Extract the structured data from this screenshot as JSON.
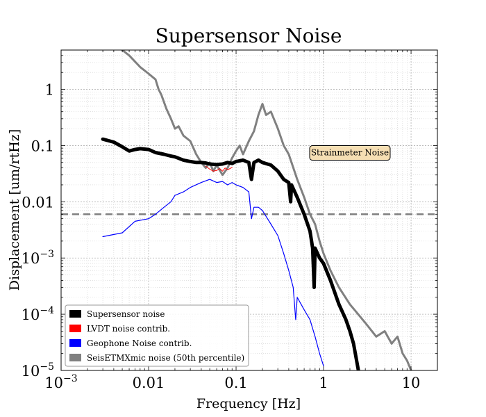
{
  "chart_data": {
    "type": "line",
    "title": "Supersensor Noise",
    "xlabel": "Frequency [Hz]",
    "ylabel": "Displacement [um/rtHz]",
    "xscale": "log",
    "yscale": "log",
    "xlim": [
      0.001,
      20
    ],
    "ylim": [
      1e-05,
      5
    ],
    "grid": true,
    "legend_position": "lower-left",
    "x_ticks": [
      {
        "value": 0.001,
        "base": "10",
        "exp": "−3",
        "label": ""
      },
      {
        "value": 0.01,
        "base": "",
        "exp": "",
        "label": "0.01"
      },
      {
        "value": 0.1,
        "base": "",
        "exp": "",
        "label": "0.1"
      },
      {
        "value": 1,
        "base": "",
        "exp": "",
        "label": "1"
      },
      {
        "value": 10,
        "base": "",
        "exp": "",
        "label": "10"
      }
    ],
    "y_ticks": [
      {
        "value": 1,
        "base": "",
        "exp": "",
        "label": "1"
      },
      {
        "value": 0.1,
        "base": "",
        "exp": "",
        "label": "0.1"
      },
      {
        "value": 0.01,
        "base": "",
        "exp": "",
        "label": "0.01"
      },
      {
        "value": 0.001,
        "base": "10",
        "exp": "−3",
        "label": ""
      },
      {
        "value": 0.0001,
        "base": "10",
        "exp": "−4",
        "label": ""
      },
      {
        "value": 1e-05,
        "base": "10",
        "exp": "−5",
        "label": ""
      }
    ],
    "reference_line": {
      "y": 0.006,
      "color": "#808080",
      "style": "dashed"
    },
    "annotation": {
      "text": "Strainmeter Noise",
      "x": 2.0,
      "y": 0.075,
      "fill": "#f5deb3"
    },
    "series": [
      {
        "name": "Supersensor noise",
        "color": "#000000",
        "width": 5,
        "points": [
          [
            0.003,
            0.13
          ],
          [
            0.004,
            0.115
          ],
          [
            0.005,
            0.095
          ],
          [
            0.006,
            0.08
          ],
          [
            0.007,
            0.085
          ],
          [
            0.008,
            0.088
          ],
          [
            0.01,
            0.085
          ],
          [
            0.012,
            0.075
          ],
          [
            0.015,
            0.07
          ],
          [
            0.018,
            0.065
          ],
          [
            0.02,
            0.063
          ],
          [
            0.025,
            0.055
          ],
          [
            0.03,
            0.052
          ],
          [
            0.035,
            0.05
          ],
          [
            0.04,
            0.05
          ],
          [
            0.045,
            0.049
          ],
          [
            0.05,
            0.047
          ],
          [
            0.06,
            0.046
          ],
          [
            0.07,
            0.047
          ],
          [
            0.08,
            0.05
          ],
          [
            0.09,
            0.048
          ],
          [
            0.1,
            0.052
          ],
          [
            0.12,
            0.055
          ],
          [
            0.14,
            0.05
          ],
          [
            0.15,
            0.025
          ],
          [
            0.16,
            0.05
          ],
          [
            0.18,
            0.055
          ],
          [
            0.2,
            0.05
          ],
          [
            0.25,
            0.045
          ],
          [
            0.3,
            0.035
          ],
          [
            0.35,
            0.025
          ],
          [
            0.4,
            0.022
          ],
          [
            0.42,
            0.01
          ],
          [
            0.43,
            0.02
          ],
          [
            0.5,
            0.012
          ],
          [
            0.6,
            0.006
          ],
          [
            0.7,
            0.003
          ],
          [
            0.75,
            0.0015
          ],
          [
            0.78,
            0.0003
          ],
          [
            0.8,
            0.0015
          ],
          [
            0.9,
            0.001
          ],
          [
            1.0,
            0.0008
          ],
          [
            1.2,
            0.0004
          ],
          [
            1.5,
            0.00015
          ],
          [
            1.8,
            8e-05
          ],
          [
            2.0,
            5e-05
          ],
          [
            2.2,
            3e-05
          ],
          [
            2.5,
            1e-05
          ]
        ]
      },
      {
        "name": "LVDT noise contrib.",
        "color": "#ff0000",
        "width": 1,
        "points": [
          [
            0.045,
            0.043
          ],
          [
            0.05,
            0.038
          ],
          [
            0.055,
            0.035
          ],
          [
            0.06,
            0.036
          ],
          [
            0.065,
            0.039
          ],
          [
            0.07,
            0.035
          ],
          [
            0.075,
            0.04
          ],
          [
            0.08,
            0.037
          ],
          [
            0.09,
            0.041
          ]
        ]
      },
      {
        "name": "Geophone Noise contrib.",
        "color": "#0000ff",
        "width": 1.2,
        "points": [
          [
            0.003,
            0.0024
          ],
          [
            0.005,
            0.0028
          ],
          [
            0.007,
            0.0045
          ],
          [
            0.01,
            0.005
          ],
          [
            0.012,
            0.006
          ],
          [
            0.015,
            0.008
          ],
          [
            0.018,
            0.01
          ],
          [
            0.02,
            0.013
          ],
          [
            0.025,
            0.015
          ],
          [
            0.03,
            0.018
          ],
          [
            0.04,
            0.022
          ],
          [
            0.05,
            0.025
          ],
          [
            0.06,
            0.022
          ],
          [
            0.07,
            0.023
          ],
          [
            0.08,
            0.02
          ],
          [
            0.09,
            0.022
          ],
          [
            0.1,
            0.02
          ],
          [
            0.12,
            0.018
          ],
          [
            0.14,
            0.015
          ],
          [
            0.15,
            0.005
          ],
          [
            0.16,
            0.008
          ],
          [
            0.18,
            0.008
          ],
          [
            0.2,
            0.007
          ],
          [
            0.25,
            0.004
          ],
          [
            0.3,
            0.0025
          ],
          [
            0.35,
            0.0012
          ],
          [
            0.4,
            0.0006
          ],
          [
            0.45,
            0.0003
          ],
          [
            0.48,
            8e-05
          ],
          [
            0.5,
            0.0002
          ],
          [
            0.6,
            0.00012
          ],
          [
            0.7,
            8e-05
          ],
          [
            0.8,
            4e-05
          ],
          [
            0.9,
            2e-05
          ],
          [
            1.0,
            1.2e-05
          ]
        ]
      },
      {
        "name": "SeisETMXmic noise (50th percentile)",
        "color": "#808080",
        "width": 3,
        "points": [
          [
            0.005,
            5
          ],
          [
            0.006,
            4
          ],
          [
            0.008,
            2.5
          ],
          [
            0.01,
            1.9
          ],
          [
            0.012,
            1.5
          ],
          [
            0.013,
            1.0
          ],
          [
            0.014,
            0.8
          ],
          [
            0.016,
            0.45
          ],
          [
            0.018,
            0.3
          ],
          [
            0.02,
            0.2
          ],
          [
            0.022,
            0.22
          ],
          [
            0.025,
            0.15
          ],
          [
            0.03,
            0.12
          ],
          [
            0.035,
            0.07
          ],
          [
            0.04,
            0.05
          ],
          [
            0.045,
            0.04
          ],
          [
            0.05,
            0.05
          ],
          [
            0.055,
            0.035
          ],
          [
            0.06,
            0.045
          ],
          [
            0.07,
            0.03
          ],
          [
            0.08,
            0.04
          ],
          [
            0.09,
            0.06
          ],
          [
            0.1,
            0.08
          ],
          [
            0.11,
            0.1
          ],
          [
            0.12,
            0.07
          ],
          [
            0.14,
            0.12
          ],
          [
            0.16,
            0.18
          ],
          [
            0.18,
            0.35
          ],
          [
            0.2,
            0.55
          ],
          [
            0.22,
            0.35
          ],
          [
            0.25,
            0.4
          ],
          [
            0.3,
            0.2
          ],
          [
            0.35,
            0.1
          ],
          [
            0.4,
            0.07
          ],
          [
            0.5,
            0.025
          ],
          [
            0.6,
            0.012
          ],
          [
            0.7,
            0.006
          ],
          [
            0.8,
            0.004
          ],
          [
            0.9,
            0.002
          ],
          [
            1.0,
            0.0012
          ],
          [
            1.2,
            0.0006
          ],
          [
            1.5,
            0.0003
          ],
          [
            2.0,
            0.00015
          ],
          [
            3.0,
            7e-05
          ],
          [
            4.0,
            4e-05
          ],
          [
            5.0,
            5e-05
          ],
          [
            6.0,
            3e-05
          ],
          [
            7.0,
            4e-05
          ],
          [
            8.0,
            2e-05
          ],
          [
            9.0,
            1.5e-05
          ],
          [
            10.0,
            1e-05
          ]
        ]
      }
    ]
  }
}
